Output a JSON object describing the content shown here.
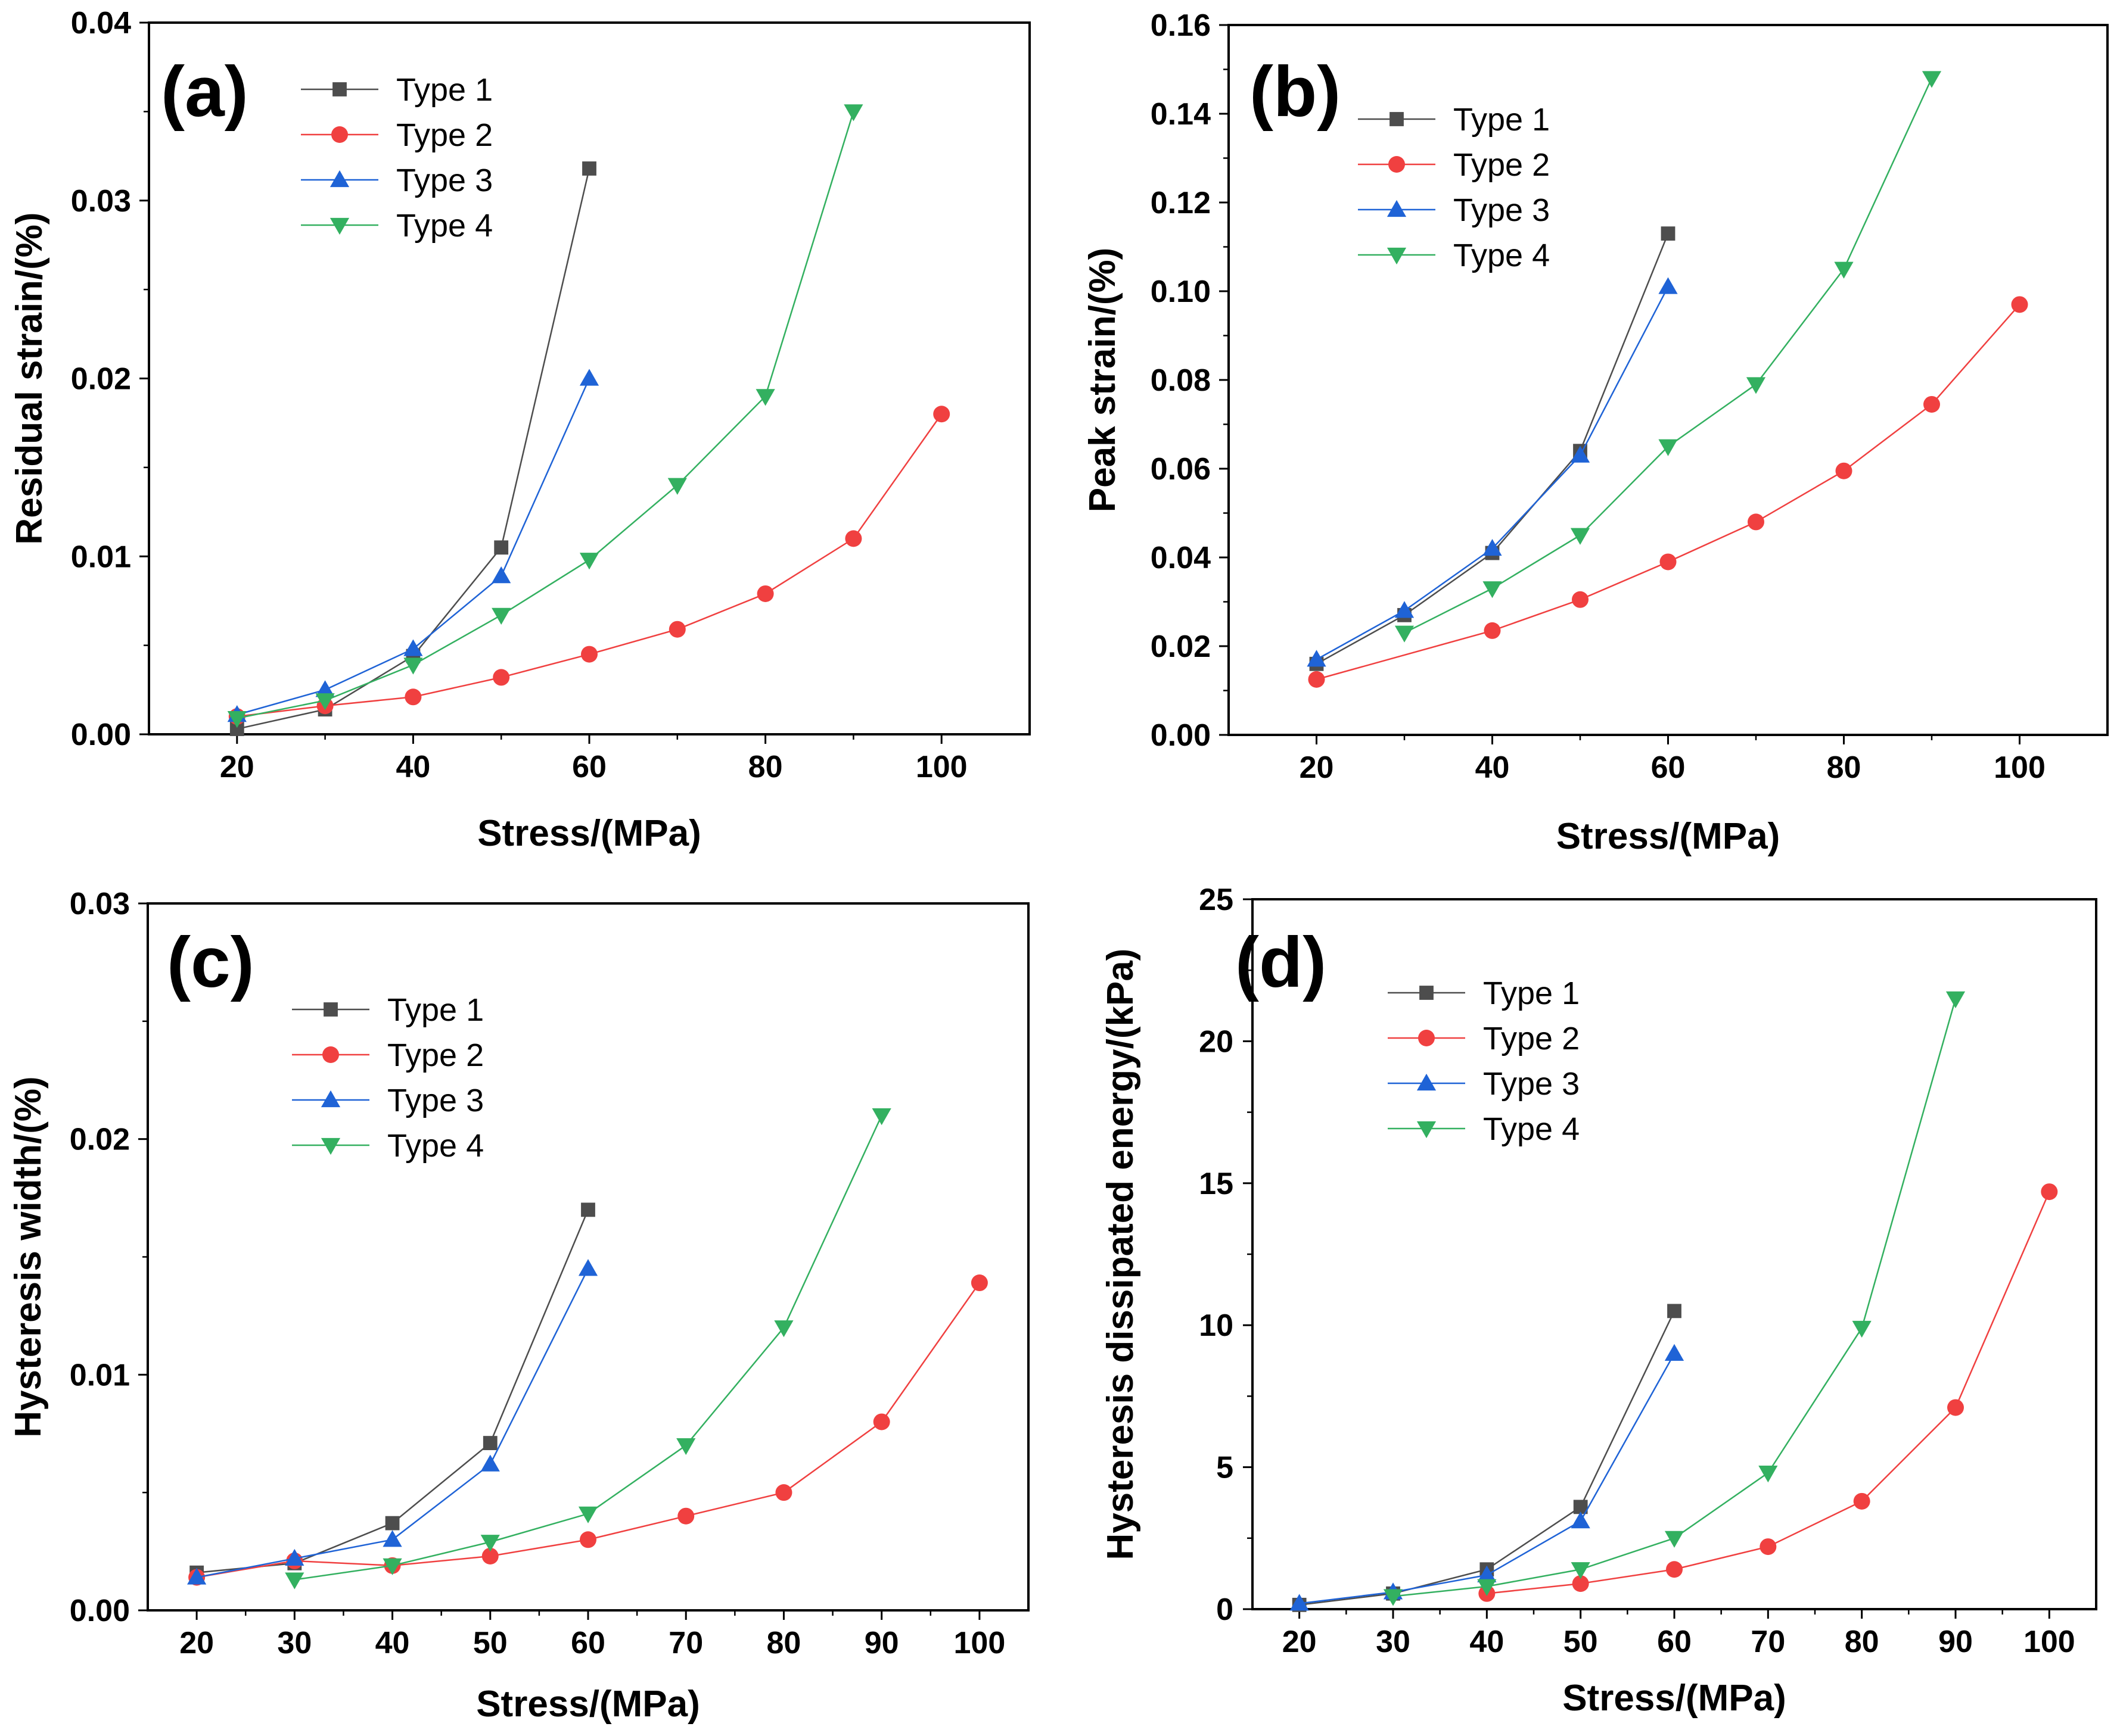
{
  "figure": {
    "colors": {
      "Type 1": "#4d4d4d",
      "Type 2": "#f04040",
      "Type 3": "#1f63d6",
      "Type 4": "#33b060"
    },
    "markers": {
      "Type 1": "square",
      "Type 2": "circle",
      "Type 3": "triangle-up",
      "Type 4": "triangle-down"
    }
  },
  "chart_data": [
    {
      "id": "a",
      "type": "line",
      "panel_label": "(a)",
      "xlabel": "Stress/(MPa)",
      "ylabel": "Residual strain/(%)",
      "xlim": [
        10,
        110
      ],
      "ylim": [
        0,
        0.04
      ],
      "xticks": [
        20,
        40,
        60,
        80,
        100
      ],
      "xtick_labels": [
        "20",
        "40",
        "60",
        "80",
        "100"
      ],
      "yticks": [
        0,
        0.01,
        0.02,
        0.03,
        0.04
      ],
      "ytick_labels": [
        "0.00",
        "0.01",
        "0.02",
        "0.03",
        "0.04"
      ],
      "legend": [
        "Type 1",
        "Type 2",
        "Type 3",
        "Type 4"
      ],
      "series": [
        {
          "name": "Type 1",
          "x": [
            20,
            30,
            40,
            50,
            60
          ],
          "y": [
            0.0003,
            0.0014,
            0.0044,
            0.0105,
            0.0318
          ]
        },
        {
          "name": "Type 2",
          "x": [
            20,
            30,
            40,
            50,
            60,
            70,
            80,
            90,
            100
          ],
          "y": [
            0.001,
            0.0016,
            0.0021,
            0.0032,
            0.0045,
            0.0059,
            0.0079,
            0.011,
            0.018
          ]
        },
        {
          "name": "Type 3",
          "x": [
            20,
            30,
            40,
            50,
            60
          ],
          "y": [
            0.0011,
            0.0025,
            0.0048,
            0.0089,
            0.02
          ]
        },
        {
          "name": "Type 4",
          "x": [
            20,
            30,
            40,
            50,
            60,
            70,
            80,
            90
          ],
          "y": [
            0.0009,
            0.0019,
            0.0039,
            0.0067,
            0.0098,
            0.014,
            0.019,
            0.035
          ]
        }
      ]
    },
    {
      "id": "b",
      "type": "line",
      "panel_label": "(b)",
      "xlabel": "Stress/(MPa)",
      "ylabel": "Peak strain/(%)",
      "xlim": [
        10,
        110
      ],
      "ylim": [
        0,
        0.16
      ],
      "xticks": [
        20,
        40,
        60,
        80,
        100
      ],
      "xtick_labels": [
        "20",
        "40",
        "60",
        "80",
        "100"
      ],
      "yticks": [
        0,
        0.02,
        0.04,
        0.06,
        0.08,
        0.1,
        0.12,
        0.14,
        0.16
      ],
      "ytick_labels": [
        "0.00",
        "0.02",
        "0.04",
        "0.06",
        "0.08",
        "0.10",
        "0.12",
        "0.14",
        "0.16"
      ],
      "legend": [
        "Type 1",
        "Type 2",
        "Type 3",
        "Type 4"
      ],
      "series": [
        {
          "name": "Type 1",
          "x": [
            20,
            30,
            40,
            50,
            60
          ],
          "y": [
            0.016,
            0.027,
            0.041,
            0.064,
            0.113
          ]
        },
        {
          "name": "Type 2",
          "x": [
            20,
            40,
            50,
            60,
            70,
            80,
            90,
            100
          ],
          "y": [
            0.0125,
            0.0235,
            0.0305,
            0.039,
            0.048,
            0.0595,
            0.0745,
            0.097
          ]
        },
        {
          "name": "Type 3",
          "x": [
            20,
            30,
            40,
            50,
            60
          ],
          "y": [
            0.017,
            0.028,
            0.042,
            0.063,
            0.101
          ]
        },
        {
          "name": "Type 4",
          "x": [
            30,
            40,
            50,
            60,
            70,
            80,
            90
          ],
          "y": [
            0.023,
            0.033,
            0.045,
            0.065,
            0.079,
            0.105,
            0.148
          ]
        }
      ]
    },
    {
      "id": "c",
      "type": "line",
      "panel_label": "(c)",
      "xlabel": "Stress/(MPa)",
      "ylabel": "Hysteresis width/(%)",
      "xlim": [
        15,
        105
      ],
      "ylim": [
        0,
        0.03
      ],
      "xticks": [
        20,
        30,
        40,
        50,
        60,
        70,
        80,
        90,
        100
      ],
      "xtick_labels": [
        "20",
        "30",
        "40",
        "50",
        "60",
        "70",
        "80",
        "90",
        "100"
      ],
      "yticks": [
        0,
        0.01,
        0.02,
        0.03
      ],
      "ytick_labels": [
        "0.00",
        "0.01",
        "0.02",
        "0.03"
      ],
      "legend": [
        "Type 1",
        "Type 2",
        "Type 3",
        "Type 4"
      ],
      "series": [
        {
          "name": "Type 1",
          "x": [
            20,
            30,
            40,
            50,
            60
          ],
          "y": [
            0.0016,
            0.002,
            0.0037,
            0.0071,
            0.017
          ]
        },
        {
          "name": "Type 2",
          "x": [
            20,
            30,
            40,
            50,
            60,
            70,
            80,
            90,
            100
          ],
          "y": [
            0.0014,
            0.0021,
            0.0019,
            0.0023,
            0.003,
            0.004,
            0.005,
            0.008,
            0.0139
          ]
        },
        {
          "name": "Type 3",
          "x": [
            20,
            30,
            40,
            50,
            60
          ],
          "y": [
            0.0014,
            0.0022,
            0.003,
            0.0062,
            0.0145
          ]
        },
        {
          "name": "Type 4",
          "x": [
            30,
            40,
            50,
            60,
            70,
            80,
            90
          ],
          "y": [
            0.0013,
            0.0019,
            0.0029,
            0.0041,
            0.007,
            0.012,
            0.021
          ]
        }
      ]
    },
    {
      "id": "d",
      "type": "line",
      "panel_label": "(d)",
      "xlabel": "Stress/(MPa)",
      "ylabel": "Hysteresis dissipated energy/(kPa)",
      "xlim": [
        15,
        105
      ],
      "ylim": [
        0,
        25
      ],
      "xticks": [
        20,
        30,
        40,
        50,
        60,
        70,
        80,
        90,
        100
      ],
      "xtick_labels": [
        "20",
        "30",
        "40",
        "50",
        "60",
        "70",
        "80",
        "90",
        "100"
      ],
      "yticks": [
        0,
        5,
        10,
        15,
        20,
        25
      ],
      "ytick_labels": [
        "0",
        "5",
        "10",
        "15",
        "20",
        "25"
      ],
      "legend": [
        "Type 1",
        "Type 2",
        "Type 3",
        "Type 4"
      ],
      "series": [
        {
          "name": "Type 1",
          "x": [
            20,
            30,
            40,
            50,
            60
          ],
          "y": [
            0.15,
            0.55,
            1.4,
            3.6,
            10.5
          ]
        },
        {
          "name": "Type 2",
          "x": [
            40,
            50,
            60,
            70,
            80,
            90,
            100
          ],
          "y": [
            0.55,
            0.9,
            1.4,
            2.2,
            3.8,
            7.1,
            14.7
          ]
        },
        {
          "name": "Type 3",
          "x": [
            20,
            30,
            40,
            50,
            60
          ],
          "y": [
            0.2,
            0.6,
            1.2,
            3.1,
            9.0
          ]
        },
        {
          "name": "Type 4",
          "x": [
            30,
            40,
            50,
            60,
            70,
            80,
            90
          ],
          "y": [
            0.45,
            0.8,
            1.4,
            2.5,
            4.8,
            9.9,
            21.5
          ]
        }
      ]
    }
  ]
}
